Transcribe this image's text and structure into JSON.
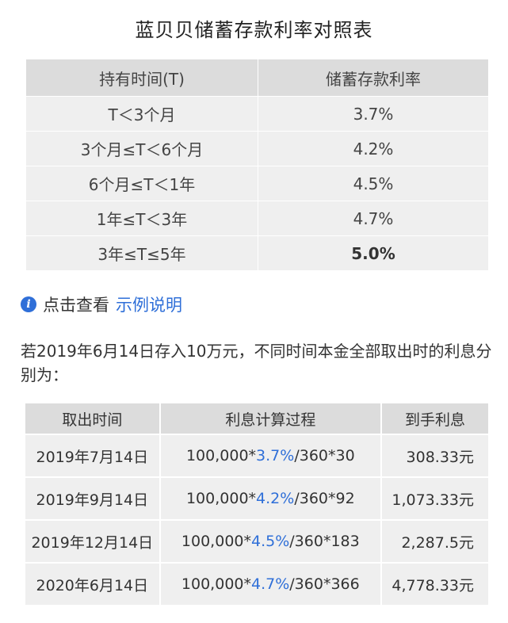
{
  "title": "蓝贝贝储蓄存款利率对照表",
  "rate_table": {
    "headers": [
      "持有时间(T)",
      "储蓄存款利率"
    ],
    "rows": [
      {
        "period": "T＜3个月",
        "rate": "3.7%"
      },
      {
        "period": "3个月≤T＜6个月",
        "rate": "4.2%"
      },
      {
        "period": "6个月≤T＜1年",
        "rate": "4.5%"
      },
      {
        "period": "1年≤T＜3年",
        "rate": "4.7%"
      },
      {
        "period": "3年≤T≤5年",
        "rate": "5.0%"
      }
    ]
  },
  "info": {
    "icon": "info-icon",
    "text": "点击查看",
    "link": "示例说明"
  },
  "paragraph": "若2019年6月14日存入10万元，不同时间本金全部取出时的利息分别为：",
  "interest_table": {
    "headers": [
      "取出时间",
      "利息计算过程",
      "到手利息"
    ],
    "rows": [
      {
        "date": "2019年7月14日",
        "calc_prefix": "100,000*",
        "calc_rate": "3.7%",
        "calc_suffix": "/360*30",
        "interest": "308.33元"
      },
      {
        "date": "2019年9月14日",
        "calc_prefix": "100,000*",
        "calc_rate": "4.2%",
        "calc_suffix": "/360*92",
        "interest": "1,073.33元"
      },
      {
        "date": "2019年12月14日",
        "calc_prefix": "100,000*",
        "calc_rate": "4.5%",
        "calc_suffix": "/360*183",
        "interest": "2,287.5元"
      },
      {
        "date": "2020年6月14日",
        "calc_prefix": "100,000*",
        "calc_rate": "4.7%",
        "calc_suffix": "/360*366",
        "interest": "4,778.33元"
      }
    ]
  },
  "colors": {
    "accent": "#2f6fd8",
    "header_bg": "#dcdcdc",
    "row_bg": "#efefef"
  }
}
